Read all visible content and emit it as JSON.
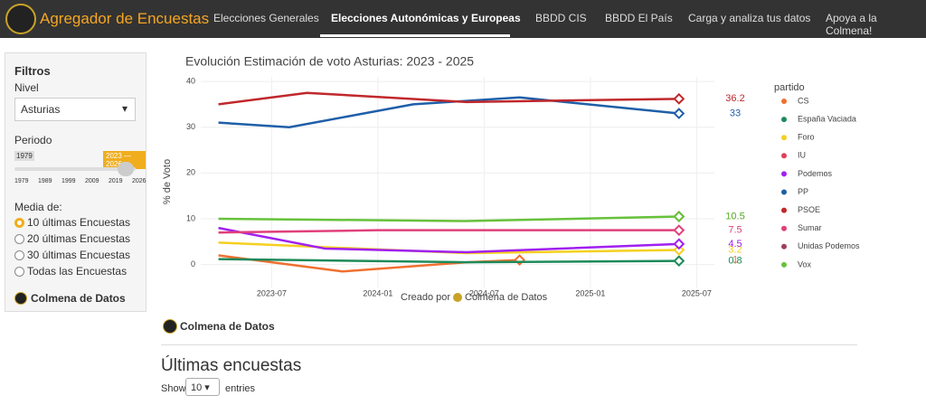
{
  "nav": {
    "brand": "Agregador de Encuestas",
    "items": [
      "Elecciones Generales",
      "Elecciones Autonómicas y Europeas",
      "BBDD CIS",
      "BBDD El País",
      "Carga y analiza tus datos",
      "Apoya a la Colmena!"
    ]
  },
  "sidebar": {
    "title": "Filtros",
    "level_label": "Nivel",
    "level_value": "Asturias",
    "period_label": "Periodo",
    "slider_min": "1979",
    "slider_range": "2023 — 2026",
    "slider_ticks": [
      "1979",
      "1989",
      "1999",
      "2009",
      "2019",
      "2026"
    ],
    "average_label": "Media de:",
    "options": [
      "10 últimas Encuestas",
      "20 últimas Encuestas",
      "30 últimas Encuestas",
      "Todas las Encuestas"
    ],
    "footer": "Colmena de Datos"
  },
  "chart_data": {
    "type": "line",
    "title": "Evolución Estimación de voto Asturias: 2023 - 2025",
    "xlabel": "Creado por",
    "credit": "Colmena de Datos",
    "ylabel": "% de Voto",
    "legend_title": "partido",
    "xlim": [
      "2023-03",
      "2025-08"
    ],
    "xticks": [
      "2023-07",
      "2024-01",
      "2024-07",
      "2025-01",
      "2025-07"
    ],
    "ylim": [
      -5,
      41
    ],
    "yticks": [
      0,
      10,
      20,
      30,
      40
    ],
    "grid": true,
    "series": [
      {
        "name": "CS",
        "color": "#f07030",
        "x": [
          "2023-04",
          "2023-11",
          "2024-06",
          "2024-09"
        ],
        "values": [
          2,
          -1.5,
          0.5,
          1
        ]
      },
      {
        "name": "España Vaciada",
        "color": "#1e8a5a",
        "x": [
          "2023-04",
          "2024-06",
          "2025-06"
        ],
        "values": [
          1.2,
          0.5,
          0.8
        ]
      },
      {
        "name": "Foro",
        "color": "#f5d020",
        "x": [
          "2023-04",
          "2024-06",
          "2025-06"
        ],
        "values": [
          4.8,
          2.5,
          3.2
        ]
      },
      {
        "name": "IU",
        "color": "#e0405a",
        "x": [],
        "values": []
      },
      {
        "name": "Podemos",
        "color": "#a020f0",
        "x": [
          "2023-04",
          "2023-10",
          "2024-06",
          "2025-06"
        ],
        "values": [
          8,
          3.5,
          2.7,
          4.5
        ]
      },
      {
        "name": "PP",
        "color": "#1f5fa8",
        "x": [
          "2023-04",
          "2023-08",
          "2024-03",
          "2024-09",
          "2025-06"
        ],
        "values": [
          31,
          30,
          35,
          36.5,
          33
        ]
      },
      {
        "name": "PSOE",
        "color": "#c0282b",
        "x": [
          "2023-04",
          "2023-09",
          "2024-06",
          "2025-06"
        ],
        "values": [
          35,
          37.5,
          35.5,
          36.2
        ]
      },
      {
        "name": "Sumar",
        "color": "#e0407a",
        "x": [
          "2023-04",
          "2024-01",
          "2025-06"
        ],
        "values": [
          7,
          7.5,
          7.5
        ]
      },
      {
        "name": "Unidas Podemos",
        "color": "#a0405a",
        "x": [
          "2025-06"
        ],
        "values": [
          10.5
        ]
      },
      {
        "name": "Vox",
        "color": "#66c23a",
        "x": [
          "2023-04",
          "2024-06",
          "2025-06"
        ],
        "values": [
          10,
          9.5,
          10.5
        ]
      }
    ]
  },
  "section": {
    "title": "Colmena de Datos"
  },
  "table": {
    "title": "Últimas encuestas",
    "show": "Show",
    "length": "10",
    "entries": "entries"
  }
}
